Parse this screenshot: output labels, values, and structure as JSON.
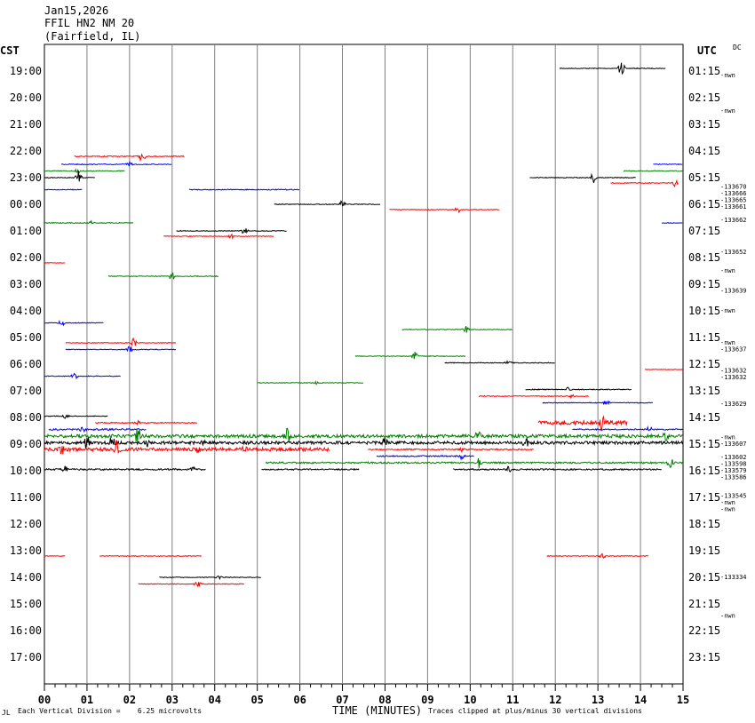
{
  "header": {
    "date": "Jan15,2026",
    "station": "FFIL HN2 NM 20",
    "location": "(Fairfield, IL)"
  },
  "left_axis_label": "CST",
  "right_axis_label": "UTC",
  "dc_label": "DC",
  "footer": {
    "left_mark": "JL",
    "vertical_division": "Each Vertical Division =    6.25 microvolts",
    "x_title": "TIME (MINUTES)",
    "clip_note": "Traces clipped at plus/minus 30 vertical divisions"
  },
  "colors": {
    "black": "#000000",
    "red": "#ff0000",
    "blue": "#0000ff",
    "green": "#008000",
    "grid": "#808080"
  },
  "chart_data": {
    "type": "line",
    "xlabel": "TIME (MINUTES)",
    "xlim": [
      0,
      15
    ],
    "x_ticks": [
      "00",
      "01",
      "02",
      "03",
      "04",
      "05",
      "06",
      "07",
      "08",
      "09",
      "10",
      "11",
      "12",
      "13",
      "14",
      "15"
    ],
    "rows": 24,
    "cst_labels": [
      "19:00",
      "20:00",
      "21:00",
      "22:00",
      "23:00",
      "00:00",
      "01:00",
      "02:00",
      "03:00",
      "04:00",
      "05:00",
      "06:00",
      "07:00",
      "08:00",
      "09:00",
      "10:00",
      "11:00",
      "12:00",
      "13:00",
      "14:00",
      "15:00",
      "16:00",
      "17:00"
    ],
    "utc_labels": [
      "01:15",
      "02:15",
      "03:15",
      "04:15",
      "05:15",
      "06:15",
      "07:15",
      "08:15",
      "09:15",
      "10:15",
      "11:15",
      "12:15",
      "13:15",
      "14:15",
      "15:15",
      "16:15",
      "17:15",
      "18:15",
      "19:15",
      "20:15",
      "21:15",
      "22:15",
      "23:15"
    ],
    "side_values": [
      {
        "row": 0.17,
        "text": "-nwn"
      },
      {
        "row": 1.5,
        "text": "-nwn"
      },
      {
        "row": 4.35,
        "text": "-133670"
      },
      {
        "row": 4.6,
        "text": "-133666"
      },
      {
        "row": 4.85,
        "text": "-133665"
      },
      {
        "row": 5.1,
        "text": "-133661"
      },
      {
        "row": 5.6,
        "text": "-133662"
      },
      {
        "row": 6.8,
        "text": "-133652"
      },
      {
        "row": 7.5,
        "text": "-nwn"
      },
      {
        "row": 8.25,
        "text": "-133639"
      },
      {
        "row": 9.0,
        "text": "-nwn"
      },
      {
        "row": 10.2,
        "text": "-nwn"
      },
      {
        "row": 10.45,
        "text": "-133637"
      },
      {
        "row": 11.25,
        "text": "-133632"
      },
      {
        "row": 11.5,
        "text": "-133632"
      },
      {
        "row": 12.5,
        "text": "-133629"
      },
      {
        "row": 13.75,
        "text": "-nwn"
      },
      {
        "row": 14.0,
        "text": "-133607"
      },
      {
        "row": 14.5,
        "text": "-133602"
      },
      {
        "row": 14.75,
        "text": "-133598"
      },
      {
        "row": 15.0,
        "text": "-133579"
      },
      {
        "row": 15.25,
        "text": "-133586"
      },
      {
        "row": 15.95,
        "text": "-133545"
      },
      {
        "row": 16.2,
        "text": "-nwn"
      },
      {
        "row": 16.45,
        "text": "-nwn"
      },
      {
        "row": 19.0,
        "text": "-133334"
      },
      {
        "row": 20.45,
        "text": "-nwn"
      }
    ],
    "traces": [
      {
        "row": -0.1,
        "x0": 12.1,
        "x1": 14.6,
        "color": "black",
        "amp": 0.4,
        "spikes": [
          [
            13.55,
            9
          ]
        ]
      },
      {
        "row": 3.2,
        "x0": 0.7,
        "x1": 3.3,
        "color": "red",
        "amp": 0.5,
        "spikes": [
          [
            2.3,
            8
          ]
        ]
      },
      {
        "row": 3.5,
        "x0": 0.4,
        "x1": 3.0,
        "color": "blue",
        "amp": 0.5,
        "spikes": [
          [
            2.0,
            3
          ]
        ]
      },
      {
        "row": 3.75,
        "x0": 0.0,
        "x1": 1.9,
        "color": "green",
        "amp": 0.5,
        "spikes": [
          [
            0.8,
            4
          ]
        ]
      },
      {
        "row": 4.0,
        "x0": 0.0,
        "x1": 1.2,
        "color": "black",
        "amp": 0.4,
        "spikes": [
          [
            0.8,
            8
          ]
        ]
      },
      {
        "row": 4.45,
        "x0": 0.0,
        "x1": 0.9,
        "color": "blue",
        "amp": 0.4,
        "spikes": []
      },
      {
        "row": 3.5,
        "x0": 14.3,
        "x1": 15.0,
        "color": "blue",
        "amp": 0.4,
        "spikes": []
      },
      {
        "row": 3.75,
        "x0": 13.6,
        "x1": 15.0,
        "color": "green",
        "amp": 0.4,
        "spikes": []
      },
      {
        "row": 4.0,
        "x0": 11.4,
        "x1": 13.9,
        "color": "black",
        "amp": 0.4,
        "spikes": [
          [
            12.9,
            7
          ]
        ]
      },
      {
        "row": 4.2,
        "x0": 13.3,
        "x1": 14.9,
        "color": "red",
        "amp": 0.4,
        "spikes": [
          [
            14.8,
            5
          ]
        ]
      },
      {
        "row": 4.45,
        "x0": 3.4,
        "x1": 6.0,
        "color": "blue",
        "amp": 0.5,
        "spikes": []
      },
      {
        "row": 5.0,
        "x0": 5.4,
        "x1": 7.9,
        "color": "black",
        "amp": 0.4,
        "spikes": [
          [
            7.0,
            5
          ]
        ]
      },
      {
        "row": 5.2,
        "x0": 8.1,
        "x1": 10.7,
        "color": "red",
        "amp": 0.4,
        "spikes": [
          [
            9.7,
            5
          ]
        ]
      },
      {
        "row": 5.7,
        "x0": 14.5,
        "x1": 15.0,
        "color": "blue",
        "amp": 0.3,
        "spikes": []
      },
      {
        "row": 5.7,
        "x0": 0.0,
        "x1": 2.1,
        "color": "green",
        "amp": 0.4,
        "spikes": [
          [
            1.1,
            3
          ]
        ]
      },
      {
        "row": 6.0,
        "x0": 3.1,
        "x1": 5.7,
        "color": "black",
        "amp": 0.4,
        "spikes": [
          [
            4.7,
            5
          ]
        ]
      },
      {
        "row": 6.2,
        "x0": 2.8,
        "x1": 5.4,
        "color": "red",
        "amp": 0.4,
        "spikes": [
          [
            4.4,
            3
          ]
        ]
      },
      {
        "row": 7.2,
        "x0": 0.0,
        "x1": 0.5,
        "color": "red",
        "amp": 0.3,
        "spikes": []
      },
      {
        "row": 7.7,
        "x0": 1.5,
        "x1": 4.1,
        "color": "green",
        "amp": 0.4,
        "spikes": [
          [
            3.0,
            6
          ]
        ]
      },
      {
        "row": 9.45,
        "x0": 0.0,
        "x1": 1.4,
        "color": "blue",
        "amp": 0.4,
        "spikes": [
          [
            0.4,
            5
          ]
        ]
      },
      {
        "row": 9.7,
        "x0": 8.4,
        "x1": 11.0,
        "color": "green",
        "amp": 0.4,
        "spikes": [
          [
            9.9,
            4
          ]
        ]
      },
      {
        "row": 10.2,
        "x0": 0.5,
        "x1": 3.1,
        "color": "red",
        "amp": 0.4,
        "spikes": [
          [
            2.1,
            6
          ]
        ]
      },
      {
        "row": 10.45,
        "x0": 0.5,
        "x1": 3.1,
        "color": "blue",
        "amp": 0.4,
        "spikes": [
          [
            2.0,
            5
          ]
        ]
      },
      {
        "row": 10.7,
        "x0": 7.3,
        "x1": 9.9,
        "color": "green",
        "amp": 0.4,
        "spikes": [
          [
            8.7,
            5
          ]
        ]
      },
      {
        "row": 10.95,
        "x0": 9.4,
        "x1": 12.0,
        "color": "black",
        "amp": 0.4,
        "spikes": [
          [
            10.9,
            3
          ]
        ]
      },
      {
        "row": 11.2,
        "x0": 14.1,
        "x1": 15.0,
        "color": "red",
        "amp": 0.3,
        "spikes": []
      },
      {
        "row": 11.45,
        "x0": 0.0,
        "x1": 1.8,
        "color": "blue",
        "amp": 0.4,
        "spikes": [
          [
            0.7,
            4
          ]
        ]
      },
      {
        "row": 11.7,
        "x0": 5.0,
        "x1": 7.5,
        "color": "green",
        "amp": 0.4,
        "spikes": [
          [
            6.4,
            2
          ]
        ]
      },
      {
        "row": 11.95,
        "x0": 11.3,
        "x1": 13.8,
        "color": "black",
        "amp": 0.5,
        "spikes": [
          [
            12.3,
            4
          ]
        ]
      },
      {
        "row": 12.2,
        "x0": 10.2,
        "x1": 12.8,
        "color": "red",
        "amp": 0.4,
        "spikes": [
          [
            12.4,
            3
          ]
        ]
      },
      {
        "row": 12.45,
        "x0": 11.7,
        "x1": 14.3,
        "color": "blue",
        "amp": 0.4,
        "spikes": [
          [
            13.2,
            4
          ]
        ]
      },
      {
        "row": 12.95,
        "x0": 0.0,
        "x1": 1.5,
        "color": "black",
        "amp": 0.4,
        "spikes": [
          [
            0.5,
            4
          ]
        ]
      },
      {
        "row": 13.2,
        "x0": 1.2,
        "x1": 3.6,
        "color": "red",
        "amp": 0.6,
        "spikes": [
          [
            2.2,
            6
          ]
        ]
      },
      {
        "row": 13.2,
        "x0": 11.6,
        "x1": 13.7,
        "color": "red",
        "amp": 2.2,
        "spikes": [
          [
            13.1,
            8
          ]
        ]
      },
      {
        "row": 13.45,
        "x0": 0.1,
        "x1": 2.4,
        "color": "blue",
        "amp": 0.9,
        "spikes": [
          [
            0.9,
            4
          ]
        ]
      },
      {
        "row": 13.45,
        "x0": 12.4,
        "x1": 15.0,
        "color": "blue",
        "amp": 0.7,
        "spikes": [
          [
            14.2,
            4
          ]
        ]
      },
      {
        "row": 13.7,
        "x0": 0.0,
        "x1": 15.0,
        "color": "green",
        "amp": 1.8,
        "spikes": [
          [
            2.2,
            13
          ],
          [
            5.7,
            10
          ],
          [
            10.2,
            8
          ],
          [
            14.6,
            8
          ]
        ]
      },
      {
        "row": 13.95,
        "x0": 0.0,
        "x1": 15.0,
        "color": "black",
        "amp": 1.7,
        "spikes": [
          [
            1.0,
            9
          ],
          [
            1.6,
            10
          ],
          [
            2.4,
            8
          ],
          [
            3.7,
            6
          ],
          [
            8.0,
            7
          ],
          [
            11.3,
            6
          ]
        ]
      },
      {
        "row": 14.2,
        "x0": 0.0,
        "x1": 6.7,
        "color": "red",
        "amp": 1.9,
        "spikes": [
          [
            0.4,
            8
          ],
          [
            1.7,
            12
          ],
          [
            3.6,
            6
          ],
          [
            4.7,
            7
          ]
        ]
      },
      {
        "row": 14.2,
        "x0": 7.6,
        "x1": 11.5,
        "color": "red",
        "amp": 0.7,
        "spikes": [
          [
            9.8,
            4
          ]
        ]
      },
      {
        "row": 14.45,
        "x0": 7.8,
        "x1": 10.1,
        "color": "blue",
        "amp": 0.7,
        "spikes": [
          [
            9.8,
            4
          ]
        ]
      },
      {
        "row": 14.7,
        "x0": 5.2,
        "x1": 15.0,
        "color": "green",
        "amp": 0.9,
        "spikes": [
          [
            10.2,
            6
          ],
          [
            14.7,
            8
          ]
        ]
      },
      {
        "row": 14.95,
        "x0": 0.0,
        "x1": 3.8,
        "color": "black",
        "amp": 0.9,
        "spikes": [
          [
            0.5,
            4
          ],
          [
            3.5,
            4
          ]
        ]
      },
      {
        "row": 14.95,
        "x0": 5.1,
        "x1": 7.4,
        "color": "black",
        "amp": 0.7,
        "spikes": []
      },
      {
        "row": 14.95,
        "x0": 9.6,
        "x1": 14.5,
        "color": "black",
        "amp": 0.8,
        "spikes": [
          [
            10.9,
            5
          ]
        ]
      },
      {
        "row": 18.2,
        "x0": 0.0,
        "x1": 0.5,
        "color": "red",
        "amp": 0.3,
        "spikes": []
      },
      {
        "row": 18.2,
        "x0": 1.3,
        "x1": 3.7,
        "color": "red",
        "amp": 0.4,
        "spikes": []
      },
      {
        "row": 18.2,
        "x0": 11.8,
        "x1": 14.2,
        "color": "red",
        "amp": 0.4,
        "spikes": [
          [
            13.1,
            4
          ]
        ]
      },
      {
        "row": 19.0,
        "x0": 2.7,
        "x1": 5.1,
        "color": "black",
        "amp": 0.4,
        "spikes": [
          [
            4.1,
            3
          ]
        ]
      },
      {
        "row": 19.25,
        "x0": 2.2,
        "x1": 4.7,
        "color": "red",
        "amp": 0.4,
        "spikes": [
          [
            3.6,
            4
          ]
        ]
      }
    ]
  }
}
